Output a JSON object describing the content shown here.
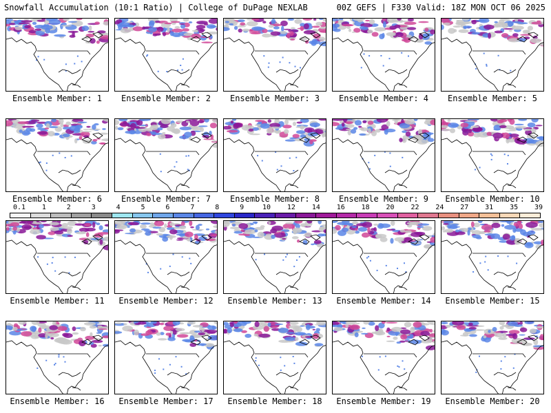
{
  "header": {
    "left": "Snowfall Accumulation (10:1 Ratio) | College of DuPage NEXLAB",
    "right": "00Z GEFS | F330 Valid: 18Z MON OCT 06 2025"
  },
  "panels": [
    {
      "label": "Ensemble Member: 1"
    },
    {
      "label": "Ensemble Member: 2"
    },
    {
      "label": "Ensemble Member: 3"
    },
    {
      "label": "Ensemble Member: 4"
    },
    {
      "label": "Ensemble Member: 5"
    },
    {
      "label": "Ensemble Member: 6"
    },
    {
      "label": "Ensemble Member: 7"
    },
    {
      "label": "Ensemble Member: 8"
    },
    {
      "label": "Ensemble Member: 9"
    },
    {
      "label": "Ensemble Member: 10"
    },
    {
      "label": "Ensemble Member: 11"
    },
    {
      "label": "Ensemble Member: 12"
    },
    {
      "label": "Ensemble Member: 13"
    },
    {
      "label": "Ensemble Member: 14"
    },
    {
      "label": "Ensemble Member: 15"
    },
    {
      "label": "Ensemble Member: 16"
    },
    {
      "label": "Ensemble Member: 17"
    },
    {
      "label": "Ensemble Member: 18"
    },
    {
      "label": "Ensemble Member: 19"
    },
    {
      "label": "Ensemble Member: 20"
    }
  ],
  "colorbar": {
    "labels": [
      "0.1",
      "1",
      "2",
      "3",
      "4",
      "5",
      "6",
      "7",
      "8",
      "9",
      "10",
      "12",
      "14",
      "16",
      "18",
      "20",
      "22",
      "24",
      "27",
      "31",
      "35",
      "39"
    ],
    "colors": [
      "#f4f4f4",
      "#dcdcdc",
      "#bdbdbd",
      "#a0a0a0",
      "#8a8a8a",
      "#9ee6f0",
      "#86c6ee",
      "#6fa6ea",
      "#5a86e6",
      "#4566e2",
      "#2f46de",
      "#2a28c8",
      "#4a22b8",
      "#6a1ca8",
      "#8a1898",
      "#a01a9a",
      "#b42aa8",
      "#c83cb6",
      "#d850b8",
      "#e060a0",
      "#e07890",
      "#e89080",
      "#f0a888",
      "#f4c098",
      "#f8d8b8",
      "#fcecd8"
    ]
  },
  "colors": {
    "snow_light": "#c8c8c8",
    "snow_blue": "#5a86e6",
    "snow_purple": "#8a1898",
    "snow_magenta": "#d04898",
    "coast": "#000000"
  }
}
